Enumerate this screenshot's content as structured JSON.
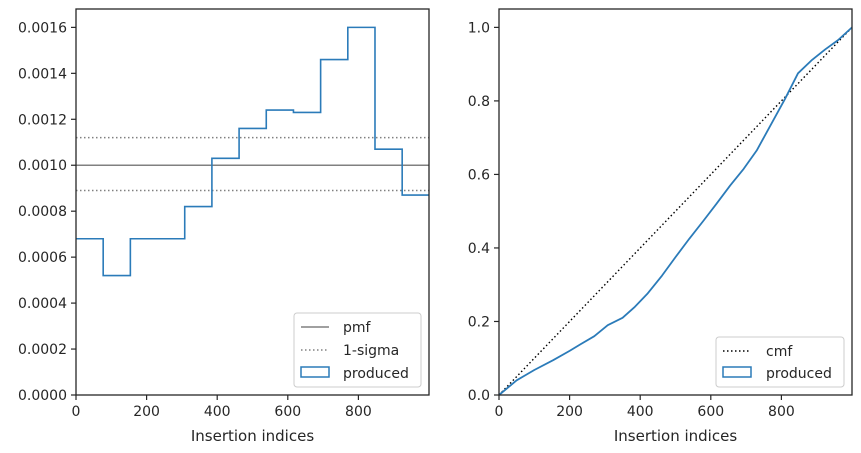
{
  "colors": {
    "produced": "#2b7bb9",
    "pmf": "#808080",
    "sigma": "#808080",
    "cmf": "#000000",
    "axes": "#262626",
    "legend_border": "#cccccc"
  },
  "chart_data": [
    {
      "type": "line",
      "panel": "left",
      "xlabel": "Insertion indices",
      "ylabel": "",
      "xlim": [
        0,
        1000
      ],
      "ylim": [
        0,
        0.00168
      ],
      "x_ticks": [
        0,
        200,
        400,
        600,
        800
      ],
      "x_tick_labels": [
        "0",
        "200",
        "400",
        "600",
        "800"
      ],
      "y_ticks": [
        0,
        0.0002,
        0.0004,
        0.0006,
        0.0008,
        0.001,
        0.0012,
        0.0014,
        0.0016
      ],
      "y_tick_labels": [
        "0.0000",
        "0.0002",
        "0.0004",
        "0.0006",
        "0.0008",
        "0.0010",
        "0.0012",
        "0.0014",
        "0.0016"
      ],
      "grid": false,
      "legend_position": "lower-right",
      "legend_entries": [
        "pmf",
        "1-sigma",
        "produced"
      ],
      "pmf_value": 0.001,
      "sigma_band": [
        0.00089,
        0.00112
      ],
      "produced_step": {
        "edges": [
          0,
          77,
          154,
          231,
          308,
          385,
          462,
          539,
          616,
          693,
          770,
          847,
          924,
          1000
        ],
        "values": [
          0.00068,
          0.00052,
          0.00068,
          0.00068,
          0.00082,
          0.00103,
          0.00116,
          0.00124,
          0.00123,
          0.00146,
          0.0016,
          0.00107,
          0.00087
        ]
      }
    },
    {
      "type": "line",
      "panel": "right",
      "xlabel": "Insertion indices",
      "ylabel": "",
      "xlim": [
        0,
        1000
      ],
      "ylim": [
        0,
        1.05
      ],
      "x_ticks": [
        0,
        200,
        400,
        600,
        800
      ],
      "x_tick_labels": [
        "0",
        "200",
        "400",
        "600",
        "800"
      ],
      "y_ticks": [
        0,
        0.2,
        0.4,
        0.6,
        0.8,
        1.0
      ],
      "y_tick_labels": [
        "0.0",
        "0.2",
        "0.4",
        "0.6",
        "0.8",
        "1.0"
      ],
      "grid": false,
      "legend_position": "lower-right",
      "legend_entries": [
        "cmf",
        "produced"
      ],
      "cmf_line": {
        "x": [
          0,
          1000
        ],
        "y": [
          0,
          1
        ]
      },
      "produced_curve": {
        "x": [
          0,
          25,
          50,
          77,
          100,
          154,
          200,
          231,
          270,
          308,
          350,
          385,
          420,
          462,
          500,
          539,
          580,
          616,
          655,
          693,
          730,
          770,
          810,
          847,
          885,
          924,
          960,
          1000
        ],
        "y": [
          0,
          0.02,
          0.04,
          0.055,
          0.068,
          0.095,
          0.12,
          0.138,
          0.16,
          0.19,
          0.21,
          0.24,
          0.275,
          0.325,
          0.375,
          0.425,
          0.475,
          0.52,
          0.57,
          0.615,
          0.665,
          0.735,
          0.805,
          0.875,
          0.91,
          0.94,
          0.965,
          1.0
        ]
      }
    }
  ]
}
